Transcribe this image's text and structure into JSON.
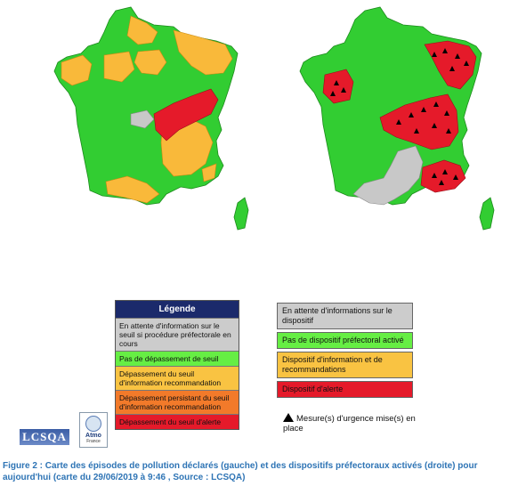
{
  "colors": {
    "green": "#32cd32",
    "light_green": "#66ee44",
    "orange": "#f9b93a",
    "orange_deep": "#f27a2a",
    "red": "#e51a2a",
    "grey": "#c8c8c8",
    "navy": "#1b2a6b"
  },
  "legend_left": {
    "title": "Légende",
    "items": [
      {
        "label": "En attente d'information sur le seuil si procédure préfectorale en cours",
        "color": "#cccccc"
      },
      {
        "label": "Pas de dépassement de seuil",
        "color": "#66ee44"
      },
      {
        "label": "Dépassement du seuil d'information recommandation",
        "color": "#f9c342"
      },
      {
        "label": "Dépassement persistant du seuil d'information recommandation",
        "color": "#f27a2a"
      },
      {
        "label": "Dépassement du seuil d'alerte",
        "color": "#e51a2a"
      }
    ]
  },
  "legend_right": {
    "items": [
      {
        "label": "En attente d'informations sur le dispositif",
        "color": "#cccccc"
      },
      {
        "label": "Pas de dispositif préfectoral activé",
        "color": "#66ee44"
      },
      {
        "label": "Dispositif d'information et de recommandations",
        "color": "#f9c342"
      },
      {
        "label": "Dispositif d'alerte",
        "color": "#e51a2a"
      }
    ],
    "urgency_label": "Mesure(s) d'urgence mise(s) en place"
  },
  "logos": {
    "lcsqa": "LCSQA",
    "atmo": "Atmo",
    "atmo_sub": "France"
  },
  "caption": "Figure 2 : Carte des épisodes de pollution déclarés (gauche) et des dispositifs préfectoraux activés (droite) pour aujourd'hui (carte du 29/06/2019 à 9:46 , Source : LCSQA)"
}
